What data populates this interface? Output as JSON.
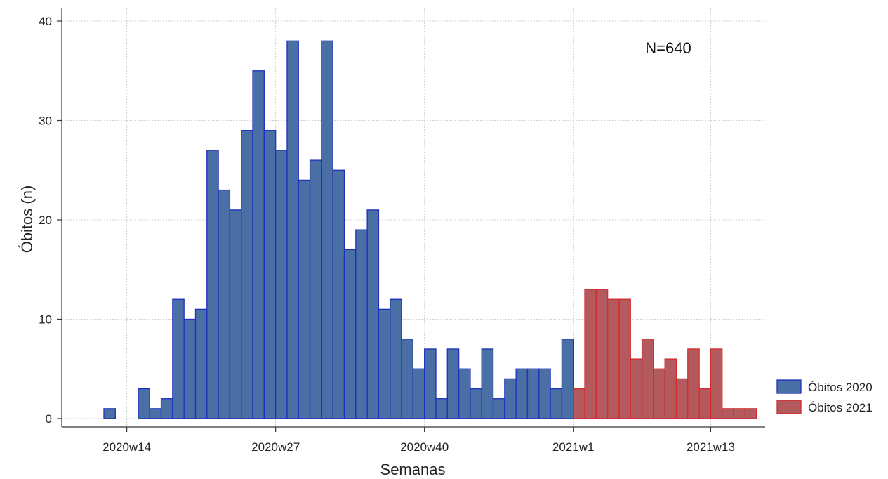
{
  "chart_data": {
    "type": "bar",
    "title": "",
    "xlabel": "Semanas",
    "ylabel": "Óbitos (n)",
    "annotation": "N=640",
    "ylim": [
      0,
      40
    ],
    "yticks": [
      0,
      10,
      20,
      30,
      40
    ],
    "grid": true,
    "legend_position": "right-bottom",
    "x_ticks": [
      {
        "label": "2020w14",
        "week_index": 14
      },
      {
        "label": "2020w27",
        "week_index": 27
      },
      {
        "label": "2020w40",
        "week_index": 40
      },
      {
        "label": "2021w1",
        "week_index": 53
      },
      {
        "label": "2021w13",
        "week_index": 65
      }
    ],
    "series": [
      {
        "name": "Óbitos 2020",
        "color": "#4a6fa5",
        "edge_color": "#1f2fbf",
        "x": [
          "2020w12",
          "2020w15",
          "2020w16",
          "2020w17",
          "2020w18",
          "2020w19",
          "2020w20",
          "2020w21",
          "2020w22",
          "2020w23",
          "2020w24",
          "2020w25",
          "2020w26",
          "2020w27",
          "2020w28",
          "2020w29",
          "2020w30",
          "2020w31",
          "2020w32",
          "2020w33",
          "2020w34",
          "2020w35",
          "2020w36",
          "2020w37",
          "2020w38",
          "2020w39",
          "2020w40",
          "2020w41",
          "2020w42",
          "2020w43",
          "2020w44",
          "2020w45",
          "2020w46",
          "2020w47",
          "2020w48",
          "2020w49",
          "2020w50",
          "2020w51",
          "2020w52"
        ],
        "week_index": [
          12,
          15,
          16,
          17,
          18,
          19,
          20,
          21,
          22,
          23,
          24,
          25,
          26,
          27,
          28,
          29,
          30,
          31,
          32,
          33,
          34,
          35,
          36,
          37,
          38,
          39,
          40,
          41,
          42,
          43,
          44,
          45,
          46,
          47,
          48,
          49,
          50,
          51,
          52
        ],
        "values": [
          1,
          3,
          1,
          2,
          12,
          10,
          11,
          27,
          23,
          21,
          29,
          35,
          29,
          27,
          38,
          24,
          26,
          38,
          25,
          17,
          19,
          21,
          11,
          12,
          8,
          5,
          7,
          2,
          7,
          5,
          3,
          7,
          2,
          4,
          5,
          5,
          5,
          3,
          8
        ]
      },
      {
        "name": "Óbitos 2021",
        "color": "#b25a5e",
        "edge_color": "#d42a2a",
        "x": [
          "2021w1",
          "2021w2",
          "2021w3",
          "2021w4",
          "2021w5",
          "2021w6",
          "2021w7",
          "2021w8",
          "2021w9",
          "2021w10",
          "2021w11",
          "2021w12",
          "2021w13",
          "2021w14",
          "2021w15",
          "2021w16"
        ],
        "week_index": [
          53,
          54,
          55,
          56,
          57,
          58,
          59,
          60,
          61,
          62,
          63,
          64,
          65,
          66,
          67,
          68
        ],
        "values": [
          3,
          13,
          13,
          12,
          12,
          6,
          8,
          5,
          6,
          4,
          7,
          3,
          7,
          1,
          1,
          1
        ]
      }
    ]
  }
}
